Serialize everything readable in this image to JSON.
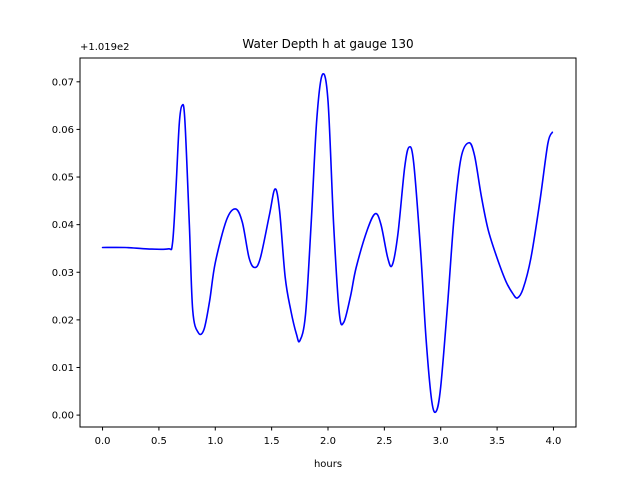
{
  "chart_data": {
    "type": "line",
    "title": "Water Depth h at gauge 130",
    "xlabel": "hours",
    "ylabel": "",
    "offset_label": "+1.019e2",
    "xlim": [
      -0.2,
      4.2
    ],
    "ylim": [
      -0.0025,
      0.075
    ],
    "grid": false,
    "x_ticks": [
      {
        "value": 0.0,
        "label": "0.0"
      },
      {
        "value": 0.5,
        "label": "0.5"
      },
      {
        "value": 1.0,
        "label": "1.0"
      },
      {
        "value": 1.5,
        "label": "1.5"
      },
      {
        "value": 2.0,
        "label": "2.0"
      },
      {
        "value": 2.5,
        "label": "2.5"
      },
      {
        "value": 3.0,
        "label": "3.0"
      },
      {
        "value": 3.5,
        "label": "3.5"
      },
      {
        "value": 4.0,
        "label": "4.0"
      }
    ],
    "y_ticks": [
      {
        "value": 0.0,
        "label": "0.00"
      },
      {
        "value": 0.01,
        "label": "0.01"
      },
      {
        "value": 0.02,
        "label": "0.02"
      },
      {
        "value": 0.03,
        "label": "0.03"
      },
      {
        "value": 0.04,
        "label": "0.04"
      },
      {
        "value": 0.05,
        "label": "0.05"
      },
      {
        "value": 0.06,
        "label": "0.06"
      },
      {
        "value": 0.07,
        "label": "0.07"
      }
    ],
    "series": [
      {
        "color": "#0000ff",
        "points": [
          [
            0.0,
            0.0352
          ],
          [
            0.2,
            0.0352
          ],
          [
            0.4,
            0.0349
          ],
          [
            0.58,
            0.0349
          ],
          [
            0.62,
            0.036
          ],
          [
            0.65,
            0.047
          ],
          [
            0.68,
            0.061
          ],
          [
            0.705,
            0.065
          ],
          [
            0.73,
            0.062
          ],
          [
            0.77,
            0.04
          ],
          [
            0.8,
            0.022
          ],
          [
            0.85,
            0.0173
          ],
          [
            0.9,
            0.018
          ],
          [
            0.95,
            0.024
          ],
          [
            1.0,
            0.032
          ],
          [
            1.1,
            0.041
          ],
          [
            1.18,
            0.0433
          ],
          [
            1.24,
            0.0405
          ],
          [
            1.3,
            0.033
          ],
          [
            1.35,
            0.031
          ],
          [
            1.4,
            0.033
          ],
          [
            1.48,
            0.042
          ],
          [
            1.53,
            0.0475
          ],
          [
            1.57,
            0.043
          ],
          [
            1.62,
            0.029
          ],
          [
            1.67,
            0.022
          ],
          [
            1.72,
            0.017
          ],
          [
            1.75,
            0.0156
          ],
          [
            1.8,
            0.021
          ],
          [
            1.85,
            0.04
          ],
          [
            1.9,
            0.062
          ],
          [
            1.95,
            0.0715
          ],
          [
            2.0,
            0.066
          ],
          [
            2.05,
            0.04
          ],
          [
            2.1,
            0.0215
          ],
          [
            2.14,
            0.0195
          ],
          [
            2.2,
            0.025
          ],
          [
            2.25,
            0.031
          ],
          [
            2.35,
            0.039
          ],
          [
            2.42,
            0.0423
          ],
          [
            2.47,
            0.04
          ],
          [
            2.53,
            0.033
          ],
          [
            2.57,
            0.0315
          ],
          [
            2.62,
            0.038
          ],
          [
            2.68,
            0.052
          ],
          [
            2.72,
            0.0563
          ],
          [
            2.76,
            0.053
          ],
          [
            2.82,
            0.035
          ],
          [
            2.87,
            0.016
          ],
          [
            2.92,
            0.003
          ],
          [
            2.96,
            0.0008
          ],
          [
            3.0,
            0.006
          ],
          [
            3.06,
            0.023
          ],
          [
            3.12,
            0.042
          ],
          [
            3.18,
            0.054
          ],
          [
            3.25,
            0.0572
          ],
          [
            3.3,
            0.0545
          ],
          [
            3.36,
            0.046
          ],
          [
            3.42,
            0.039
          ],
          [
            3.5,
            0.033
          ],
          [
            3.58,
            0.028
          ],
          [
            3.64,
            0.0255
          ],
          [
            3.68,
            0.0246
          ],
          [
            3.73,
            0.0265
          ],
          [
            3.8,
            0.033
          ],
          [
            3.88,
            0.045
          ],
          [
            3.95,
            0.057
          ],
          [
            3.99,
            0.0594
          ]
        ]
      }
    ]
  }
}
